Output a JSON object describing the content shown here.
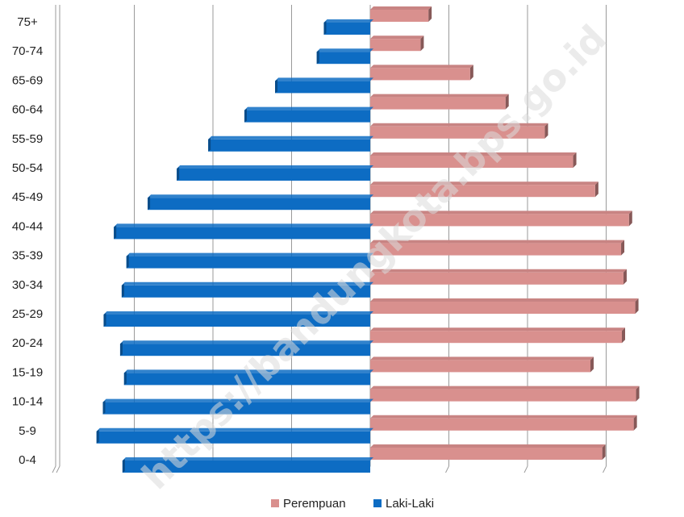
{
  "chart_data": {
    "type": "bar",
    "orientation": "horizontal",
    "subtype": "population-pyramid",
    "categories": [
      "0-4",
      "5-9",
      "10-14",
      "15-19",
      "20-24",
      "25-29",
      "30-34",
      "35-39",
      "40-44",
      "45-49",
      "50-54",
      "55-59",
      "60-64",
      "65-69",
      "70-74",
      "75+"
    ],
    "series": [
      {
        "name": "Perempuan",
        "color": "#D9908E",
        "side": "right",
        "values": [
          29.5,
          33.5,
          33.8,
          28.0,
          32.0,
          33.7,
          32.2,
          31.9,
          32.9,
          28.6,
          25.8,
          22.2,
          17.2,
          12.7,
          6.4,
          7.4
        ]
      },
      {
        "name": "Laki-Laki",
        "color": "#0D6CC3",
        "side": "left",
        "values": [
          31.5,
          34.8,
          34.0,
          31.3,
          31.8,
          33.9,
          31.6,
          31.0,
          32.6,
          28.3,
          24.6,
          20.6,
          16.0,
          12.1,
          6.8,
          5.9
        ]
      }
    ],
    "xlim": [
      -40,
      40
    ],
    "grid": true,
    "legend": {
      "position": "bottom",
      "entries": [
        "Perempuan",
        "Laki-Laki"
      ]
    }
  },
  "watermark": "https://bandungkota.bps.go.id"
}
